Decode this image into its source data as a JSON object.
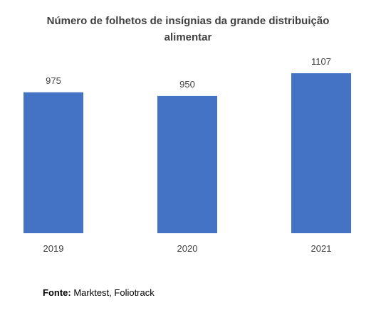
{
  "chart_data": {
    "type": "bar",
    "title": "Número de folhetos de insígnias da grande distribuição\nalimentar",
    "categories": [
      "2019",
      "2020",
      "2021"
    ],
    "values": [
      975,
      950,
      1107
    ],
    "data_labels": [
      "975",
      "950",
      "1107"
    ],
    "xlabel": "",
    "ylabel": "",
    "ylim": [
      0,
      1107
    ],
    "grid": false,
    "legend": "none",
    "bar_color": "#4472C4"
  },
  "source": {
    "label": "Fonte:",
    "text": " Marktest, Foliotrack"
  }
}
